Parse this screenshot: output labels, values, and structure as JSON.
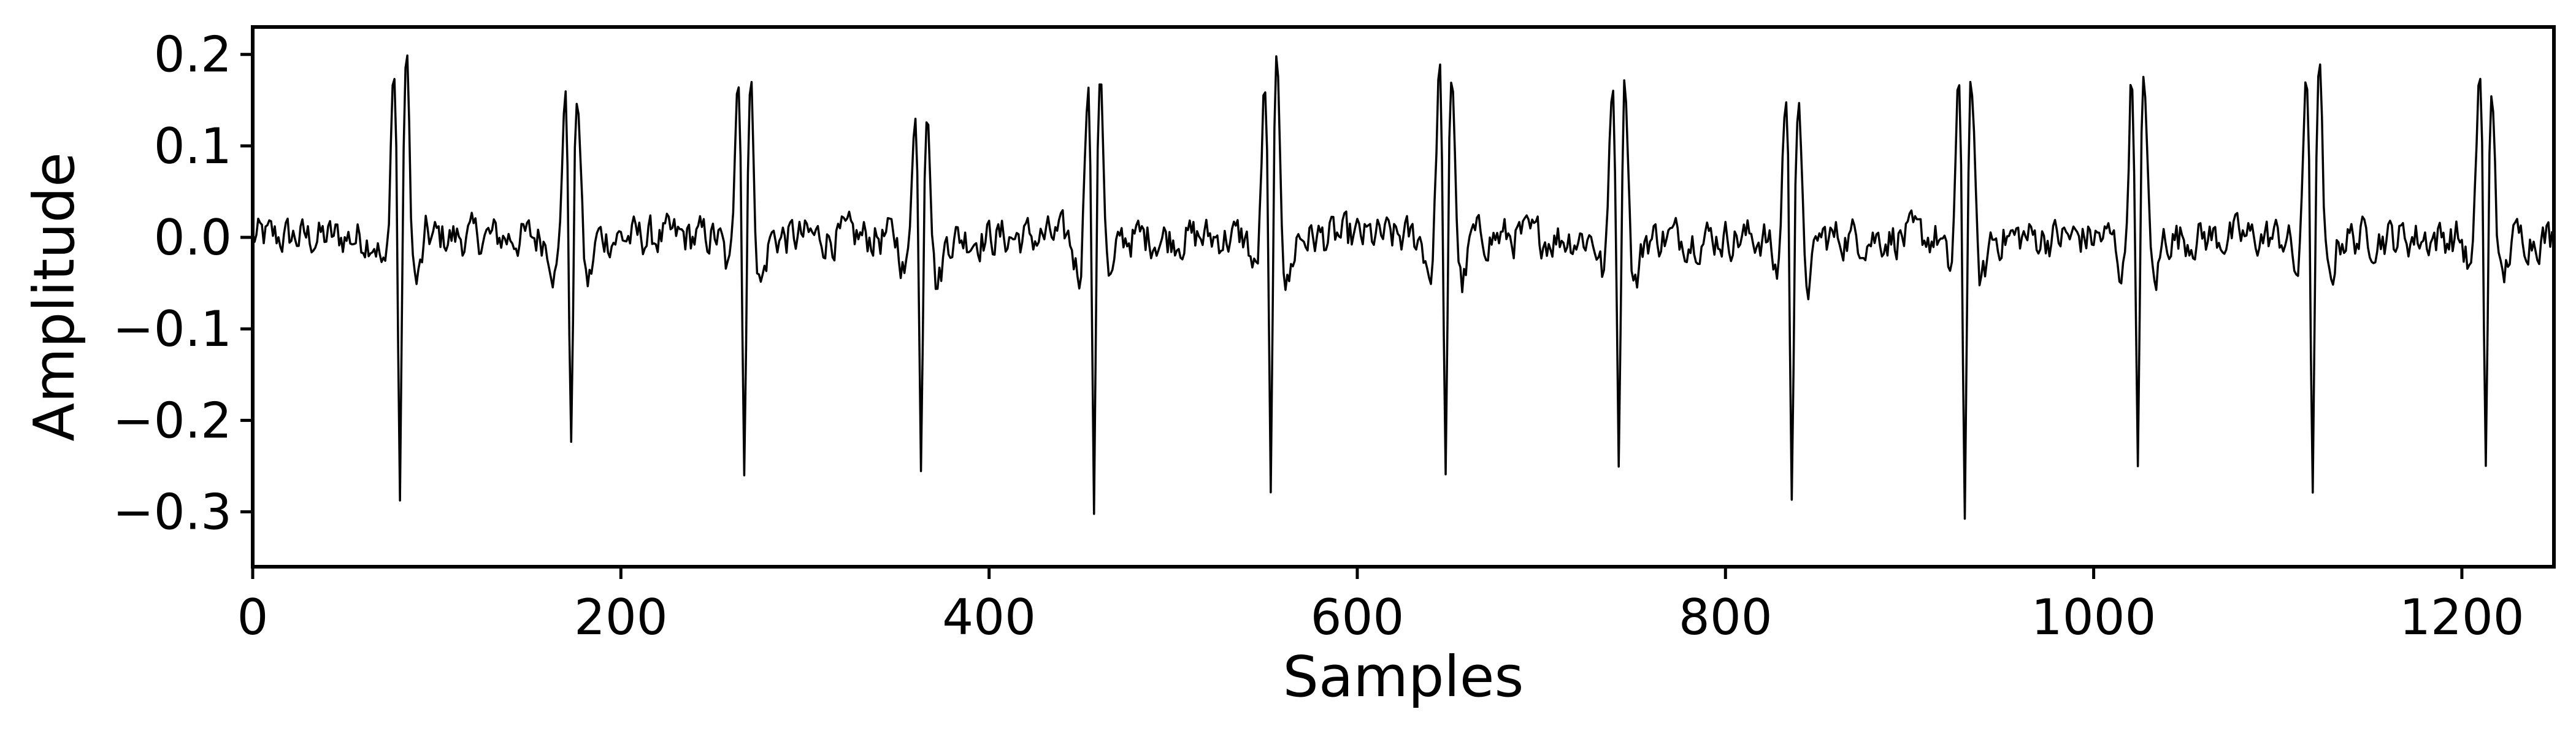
{
  "chart_data": {
    "type": "line",
    "title": "",
    "xlabel": "Samples",
    "ylabel": "Amplitude",
    "xlim": [
      0,
      1250
    ],
    "ylim": [
      -0.36,
      0.23
    ],
    "xticks": [
      0,
      200,
      400,
      600,
      800,
      1000,
      1200
    ],
    "yticks": [
      -0.3,
      -0.2,
      -0.1,
      0.0,
      0.1,
      0.2
    ],
    "xtick_labels": [
      "0",
      "200",
      "400",
      "600",
      "800",
      "1000",
      "1200"
    ],
    "ytick_labels": [
      "−0.3",
      "−0.2",
      "−0.1",
      "0.0",
      "0.1",
      "0.2"
    ],
    "grid": false,
    "line_color": "#000000",
    "series": [
      {
        "description_note": "",
        "beats": [
          {
            "x": 80,
            "peak1": 0.19,
            "trough": -0.32,
            "peak2": 0.2
          },
          {
            "x": 173,
            "peak1": 0.16,
            "trough": -0.26,
            "peak2": 0.16
          },
          {
            "x": 267,
            "peak1": 0.2,
            "trough": -0.29,
            "peak2": 0.17
          },
          {
            "x": 363,
            "peak1": 0.15,
            "trough": -0.27,
            "peak2": 0.16
          },
          {
            "x": 457,
            "peak1": 0.18,
            "trough": -0.33,
            "peak2": 0.19
          },
          {
            "x": 553,
            "peak1": 0.16,
            "trough": -0.3,
            "peak2": 0.19
          },
          {
            "x": 648,
            "peak1": 0.19,
            "trough": -0.31,
            "peak2": 0.18
          },
          {
            "x": 742,
            "peak1": 0.18,
            "trough": -0.27,
            "peak2": 0.18
          },
          {
            "x": 836,
            "peak1": 0.16,
            "trough": -0.3,
            "peak2": 0.15
          },
          {
            "x": 930,
            "peak1": 0.16,
            "trough": -0.33,
            "peak2": 0.18
          },
          {
            "x": 1024,
            "peak1": 0.18,
            "trough": -0.29,
            "peak2": 0.18
          },
          {
            "x": 1119,
            "peak1": 0.19,
            "trough": -0.32,
            "peak2": 0.19
          },
          {
            "x": 1213,
            "peak1": 0.19,
            "trough": -0.29,
            "peak2": 0.16
          }
        ],
        "baseline_noise_amplitude": 0.025,
        "n_samples": 1250
      }
    ]
  }
}
